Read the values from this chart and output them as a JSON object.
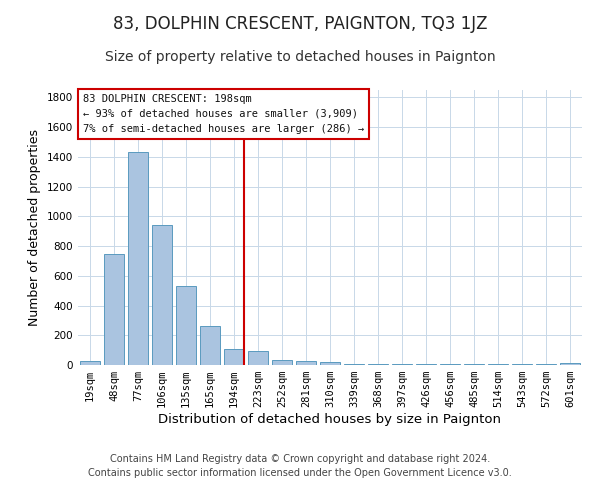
{
  "title": "83, DOLPHIN CRESCENT, PAIGNTON, TQ3 1JZ",
  "subtitle": "Size of property relative to detached houses in Paignton",
  "xlabel": "Distribution of detached houses by size in Paignton",
  "ylabel": "Number of detached properties",
  "categories": [
    "19sqm",
    "48sqm",
    "77sqm",
    "106sqm",
    "135sqm",
    "165sqm",
    "194sqm",
    "223sqm",
    "252sqm",
    "281sqm",
    "310sqm",
    "339sqm",
    "368sqm",
    "397sqm",
    "426sqm",
    "456sqm",
    "485sqm",
    "514sqm",
    "543sqm",
    "572sqm",
    "601sqm"
  ],
  "values": [
    25,
    750,
    1430,
    940,
    530,
    265,
    105,
    95,
    35,
    25,
    20,
    10,
    10,
    5,
    5,
    5,
    5,
    5,
    5,
    5,
    15
  ],
  "bar_color": "#aac4e0",
  "bar_edge_color": "#5a9abf",
  "vline_idx": 6,
  "vline_color": "#cc0000",
  "annotation_text": "83 DOLPHIN CRESCENT: 198sqm\n← 93% of detached houses are smaller (3,909)\n7% of semi-detached houses are larger (286) →",
  "annotation_box_color": "#cc0000",
  "ylim": [
    0,
    1850
  ],
  "yticks": [
    0,
    200,
    400,
    600,
    800,
    1000,
    1200,
    1400,
    1600,
    1800
  ],
  "footnote1": "Contains HM Land Registry data © Crown copyright and database right 2024.",
  "footnote2": "Contains public sector information licensed under the Open Government Licence v3.0.",
  "bg_color": "#ffffff",
  "grid_color": "#c8d8e8",
  "title_fontsize": 12,
  "subtitle_fontsize": 10,
  "xlabel_fontsize": 9.5,
  "ylabel_fontsize": 9,
  "tick_fontsize": 7.5,
  "footnote_fontsize": 7
}
